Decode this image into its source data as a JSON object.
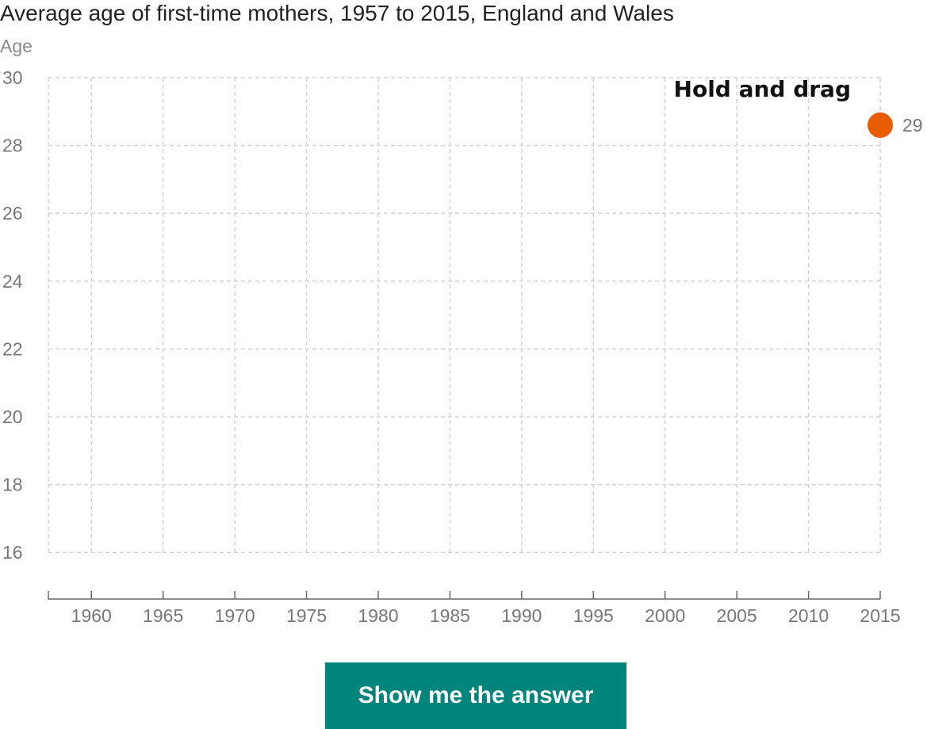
{
  "page": {
    "button_label": "Show me the answer",
    "hint": "Hold and drag"
  },
  "chart_data": {
    "type": "line",
    "title": "Average age of first-time mothers, 1957 to 2015, England and Wales",
    "ylabel": "Age",
    "xlabel": "",
    "xlim": [
      1957,
      2015
    ],
    "ylim": [
      15,
      30
    ],
    "x_ticks": [
      1960,
      1965,
      1970,
      1975,
      1980,
      1985,
      1990,
      1995,
      2000,
      2005,
      2010,
      2015
    ],
    "y_ticks": [
      16,
      18,
      20,
      22,
      24,
      26,
      28,
      30
    ],
    "grid": true,
    "series": [
      {
        "values": [
          {
            "x": 2015,
            "y": 28.6
          }
        ],
        "color": "#e85d04"
      }
    ],
    "handle": {
      "x": 2015,
      "y": 28.6,
      "label": "29",
      "color": "#e85d04"
    }
  }
}
